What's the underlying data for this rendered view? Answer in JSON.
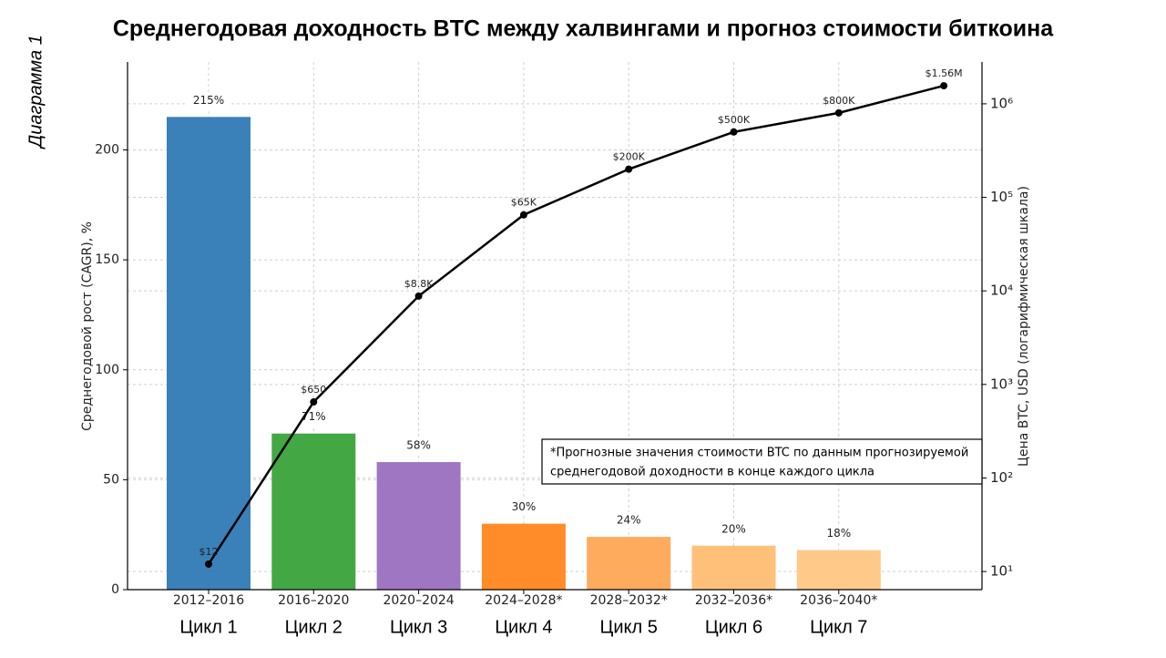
{
  "side_label": "Диаграмма 1",
  "chart_data": {
    "type": "bar",
    "title": "Среднегодовая доходность BTC между халвингами и прогноз стоимости биткоина",
    "y_label": "Среднегодовой рост (CAGR), %",
    "y2_label": "Цена BTC, USD (логарифмическая шкала)",
    "categories": [
      "2012–2016",
      "2016–2020",
      "2020–2024",
      "2024–2028*",
      "2028–2032*",
      "2032–2036*",
      "2036–2040*",
      null
    ],
    "cycle_labels": [
      "Цикл 1",
      "Цикл 2",
      "Цикл 3",
      "Цикл 4",
      "Цикл 5",
      "Цикл 6",
      "Цикл 7",
      null
    ],
    "values": [
      215,
      71,
      58,
      30,
      24,
      20,
      18,
      null
    ],
    "value_labels": [
      "215%",
      "71%",
      "58%",
      "30%",
      "24%",
      "20%",
      "18%",
      null
    ],
    "colors": [
      "#3a81ba",
      "#43a843",
      "#9e76c2",
      "#ff8c28",
      "#ffab5e",
      "#ffc07a",
      "#ffc98a"
    ],
    "ylim": [
      0,
      240
    ],
    "yticks": [
      0,
      50,
      100,
      150,
      200
    ],
    "y2lim": [
      6.4,
      2800000
    ],
    "y2_log": true,
    "y2ticks": [
      {
        "value": 10,
        "label": "10¹"
      },
      {
        "value": 100,
        "label": "10²"
      },
      {
        "value": 1000,
        "label": "10³"
      },
      {
        "value": 10000,
        "label": "10⁴"
      },
      {
        "value": 100000,
        "label": "10⁵"
      },
      {
        "value": 1000000,
        "label": "10⁶"
      }
    ],
    "grid": true,
    "line": {
      "type": "line",
      "axis": "y2",
      "color": "#000000",
      "values": [
        12,
        650,
        8800,
        65000,
        200000,
        500000,
        800000,
        1560000
      ],
      "value_labels": [
        "$12",
        "$650",
        "$8.8K",
        "$65K",
        "$200K",
        "$500K",
        "$800K",
        "$1.56M"
      ]
    },
    "note": [
      "*Прогнозные значения стоимости BTC по данным прогнозируемой",
      "среднегодовой доходности в конце каждого цикла"
    ]
  }
}
